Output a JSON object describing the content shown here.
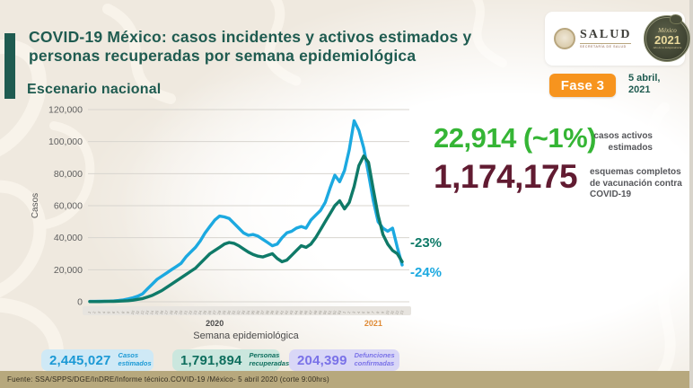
{
  "header": {
    "title": "COVID-19 México: casos incidentes y activos estimados y personas recuperadas por semana epidemiológica",
    "subtitle": "Escenario nacional",
    "phase_badge": "Fase 3",
    "date": "5 abril, 2021",
    "logos": {
      "salud": {
        "name": "SALUD",
        "caption": "SECRETARÍA DE SALUD"
      },
      "mexico2021": {
        "line1": "México",
        "line2": "2021",
        "line3": "Año de la Independencia"
      }
    }
  },
  "chart_data": {
    "type": "line",
    "title": "Escenario nacional",
    "xlabel": "Semana epidemiológica",
    "ylabel": "Casos",
    "ylim": [
      0,
      120000
    ],
    "ytick_step": 20000,
    "grid": true,
    "x_groups": [
      {
        "label": "2020",
        "weeks": 53,
        "color": "#4a4a4a"
      },
      {
        "label": "2021",
        "weeks": 13,
        "color": "#df8a35"
      }
    ],
    "series": [
      {
        "name": "Casos estimados",
        "color": "#1ca9e0",
        "values": [
          200,
          200,
          300,
          300,
          400,
          500,
          800,
          1200,
          1800,
          2500,
          3500,
          5000,
          8000,
          11000,
          14000,
          16000,
          18000,
          20000,
          22000,
          24000,
          28000,
          31000,
          34000,
          38000,
          43000,
          47000,
          51000,
          53500,
          53000,
          52000,
          49000,
          46000,
          43000,
          41500,
          42000,
          41000,
          39000,
          37000,
          35000,
          36000,
          40000,
          43000,
          44000,
          46000,
          47000,
          46000,
          51000,
          54000,
          57000,
          62000,
          71000,
          79000,
          75000,
          82000,
          95000,
          113000,
          107000,
          96000,
          80000,
          63000,
          50000,
          46000,
          44000,
          46000,
          34000,
          23000
        ]
      },
      {
        "name": "Personas recuperadas",
        "color": "#0f7a68",
        "values": [
          100,
          100,
          100,
          200,
          200,
          300,
          400,
          500,
          700,
          1000,
          1500,
          2000,
          3000,
          4000,
          5500,
          7000,
          9000,
          11000,
          13000,
          15000,
          17000,
          19000,
          21000,
          24000,
          27000,
          30000,
          32000,
          34000,
          36000,
          37000,
          36500,
          35000,
          33000,
          31000,
          29500,
          28500,
          28000,
          29000,
          30000,
          27000,
          25000,
          26000,
          29000,
          32000,
          35000,
          34000,
          36000,
          40000,
          45000,
          50000,
          55000,
          60000,
          63000,
          58000,
          62000,
          72000,
          85000,
          91000,
          87000,
          70000,
          54000,
          42000,
          36000,
          32000,
          30000,
          25000
        ]
      }
    ],
    "annotations": [
      {
        "text": "-23%",
        "value": 37000,
        "color": "#0f7a68"
      },
      {
        "text": "-24%",
        "value": 18500,
        "color": "#1ca9e0"
      }
    ]
  },
  "highlights": {
    "active_cases": {
      "value": "22,914 (~1%)",
      "label": "casos activos estimados",
      "color": "#35b535"
    },
    "vaccination": {
      "value": "1,174,175",
      "label": "esquemas completos de vacunación contra COVID-19",
      "color": "#611b31"
    }
  },
  "summary_stats": [
    {
      "value": "2,445,027",
      "label": "Casos estimados",
      "bg": "#cfe9f6",
      "color": "#1b99d5",
      "width": 125,
      "gap": 21
    },
    {
      "value": "1,791,894",
      "label": "Personas recuperadas",
      "bg": "#cbe7de",
      "color": "#0d6e5d",
      "width": 120,
      "gap": 10
    },
    {
      "value": "204,399",
      "label": "Defunciones confirmadas",
      "bg": "#d9d7f7",
      "color": "#7a72e8",
      "width": 123,
      "gap": 0
    }
  ],
  "footer": {
    "source": "Fuente: SSA/SPPS/DGE/InDRE/Informe técnico.COVID-19 /México- 5 abril 2020 (corte 9:00hrs)"
  }
}
